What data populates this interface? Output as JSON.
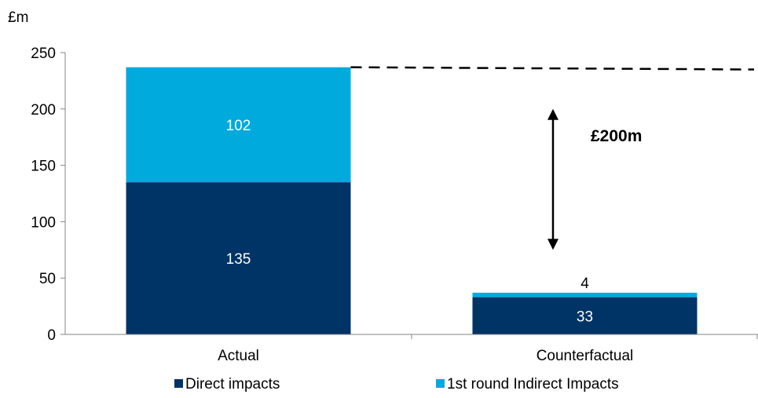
{
  "chart_data": {
    "type": "bar",
    "stacked": true,
    "unit_label": "£m",
    "categories": [
      "Actual",
      "Counterfactual"
    ],
    "series": [
      {
        "name": "Direct impacts",
        "values": [
          135,
          33
        ],
        "color": "#003366"
      },
      {
        "name": "1st round Indirect Impacts",
        "values": [
          102,
          4
        ],
        "color": "#00AADD"
      }
    ],
    "data_labels": {
      "Actual": [
        "135",
        "102"
      ],
      "Counterfactual": [
        "33",
        "4"
      ]
    },
    "y_ticks": [
      0,
      50,
      100,
      150,
      200,
      250
    ],
    "ylim": [
      0,
      250
    ],
    "grid": false,
    "legend_position": "bottom",
    "annotation": {
      "text": "£200m",
      "arrow_from": 200,
      "arrow_to": 75,
      "dashed_line_from": 237,
      "dashed_line_to": 235
    }
  }
}
